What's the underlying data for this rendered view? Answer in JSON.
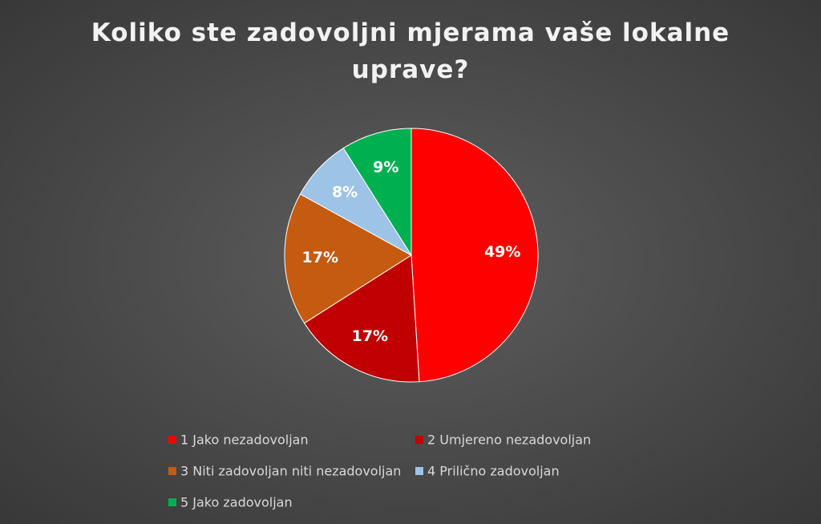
{
  "chart_data": {
    "type": "pie",
    "title": "Koliko ste zadovoljni mjerama vaše lokalne uprave?",
    "categories": [
      "1 Jako nezadovoljan",
      "2 Umjereno nezadovoljan",
      "3 Niti zadovoljan niti nezadovoljan",
      "4 Prilično zadovoljan",
      "5 Jako zadovoljan"
    ],
    "values": [
      49,
      17,
      17,
      8,
      9
    ],
    "value_labels": [
      "49%",
      "17%",
      "17%",
      "8%",
      "9%"
    ],
    "colors": [
      "#ff0000",
      "#c00000",
      "#c55a11",
      "#9dc3e6",
      "#00b050"
    ],
    "legend": "bottom"
  }
}
